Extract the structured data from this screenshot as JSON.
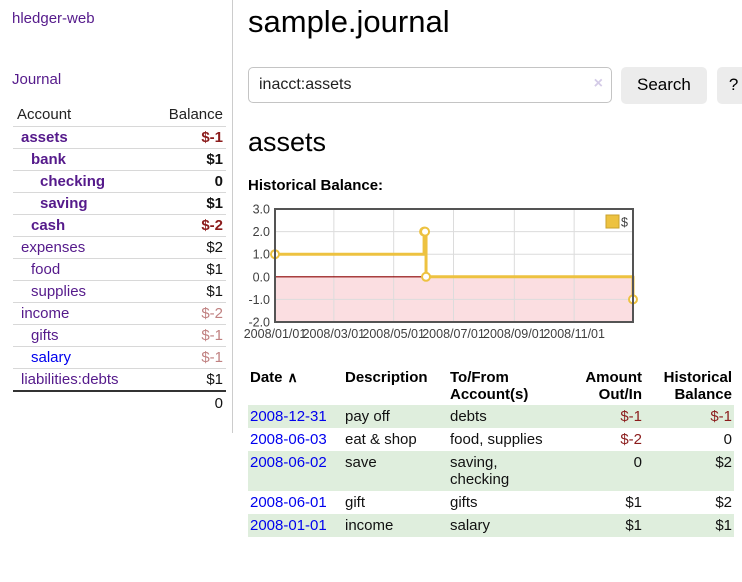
{
  "app": {
    "brand": "hledger-web"
  },
  "sidebar": {
    "journal_label": "Journal",
    "accounts": {
      "header_account": "Account",
      "header_balance": "Balance",
      "rows": [
        {
          "name": "assets",
          "balance": "$-1",
          "level": 1,
          "bold": true,
          "name_color": "purple",
          "balance_color": "negative"
        },
        {
          "name": "bank",
          "balance": "$1",
          "level": 2,
          "bold": true,
          "name_color": "purple",
          "balance_color": "normal"
        },
        {
          "name": "checking",
          "balance": "0",
          "level": 3,
          "bold": true,
          "name_color": "purple",
          "balance_color": "normal"
        },
        {
          "name": "saving",
          "balance": "$1",
          "level": 3,
          "bold": true,
          "name_color": "purple",
          "balance_color": "normal"
        },
        {
          "name": "cash",
          "balance": "$-2",
          "level": 2,
          "bold": true,
          "name_color": "purple",
          "balance_color": "negative"
        },
        {
          "name": "expenses",
          "balance": "$2",
          "level": 1,
          "bold": false,
          "name_color": "purple",
          "balance_color": "normal"
        },
        {
          "name": "food",
          "balance": "$1",
          "level": 2,
          "bold": false,
          "name_color": "purple",
          "balance_color": "normal"
        },
        {
          "name": "supplies",
          "balance": "$1",
          "level": 2,
          "bold": false,
          "name_color": "purple",
          "balance_color": "normal"
        },
        {
          "name": "income",
          "balance": "$-2",
          "level": 1,
          "bold": false,
          "name_color": "purple",
          "balance_color": "negative-muted"
        },
        {
          "name": "gifts",
          "balance": "$-1",
          "level": 2,
          "bold": false,
          "name_color": "purple",
          "balance_color": "negative-muted"
        },
        {
          "name": "salary",
          "balance": "$-1",
          "level": 2,
          "bold": false,
          "name_color": "blue",
          "balance_color": "negative-muted"
        },
        {
          "name": "liabilities:debts",
          "balance": "$1",
          "level": 1,
          "bold": false,
          "name_color": "purple",
          "balance_color": "normal"
        }
      ],
      "total": "0"
    }
  },
  "main": {
    "title": "sample.journal",
    "search": {
      "value": "inacct:assets",
      "clear_icon": "×",
      "button_label": "Search",
      "help_label": "?"
    },
    "account_heading": "assets",
    "chart_label": "Historical Balance:"
  },
  "chart_data": {
    "type": "line",
    "title": "Historical Balance",
    "step": true,
    "x": [
      "2008-01-01",
      "2008-06-01",
      "2008-06-02",
      "2008-06-03",
      "2008-12-31"
    ],
    "series": [
      {
        "name": "$",
        "values": [
          1,
          2,
          2,
          0,
          -1
        ]
      }
    ],
    "x_ticks": [
      "2008/01/01",
      "2008/03/01",
      "2008/05/01",
      "2008/07/01",
      "2008/09/01",
      "2008/11/01"
    ],
    "y_ticks": [
      "3.0",
      "2.0",
      "1.0",
      "0.0",
      "-1.0",
      "-2.0"
    ],
    "xlim": [
      "2008-01-01",
      "2008-12-31"
    ],
    "ylim": [
      -2,
      3
    ],
    "grid": true,
    "legend_position": "top-right",
    "legend": [
      {
        "label": "$",
        "color": "#EDC240"
      }
    ],
    "line_color": "#EDC240",
    "marker": "open-circle",
    "negative_region_color": "#fbdee1",
    "zero_line_color": "#8b0000",
    "grid_color": "#dcdcdc",
    "border_color": "#545454"
  },
  "register": {
    "headers": {
      "date": "Date",
      "sort_icon": "∧",
      "description": "Description",
      "to_from": "To/From\nAccount(s)",
      "amount": "Amount\nOut/In",
      "balance": "Historical\nBalance"
    },
    "rows": [
      {
        "date": "2008-12-31",
        "description": "pay off",
        "to_from": "debts",
        "amount": "$-1",
        "amount_negative": true,
        "balance": "$-1",
        "balance_negative": true,
        "striped": true
      },
      {
        "date": "2008-06-03",
        "description": "eat & shop",
        "to_from": "food, supplies",
        "amount": "$-2",
        "amount_negative": true,
        "balance": "0",
        "balance_negative": false,
        "striped": false
      },
      {
        "date": "2008-06-02",
        "description": "save",
        "to_from": "saving,\nchecking",
        "amount": "0",
        "amount_negative": false,
        "balance": "$2",
        "balance_negative": false,
        "striped": true
      },
      {
        "date": "2008-06-01",
        "description": "gift",
        "to_from": "gifts",
        "amount": "$1",
        "amount_negative": false,
        "balance": "$2",
        "balance_negative": false,
        "striped": false
      },
      {
        "date": "2008-01-01",
        "description": "income",
        "to_from": "salary",
        "amount": "$1",
        "amount_negative": false,
        "balance": "$1",
        "balance_negative": false,
        "striped": true
      }
    ]
  }
}
